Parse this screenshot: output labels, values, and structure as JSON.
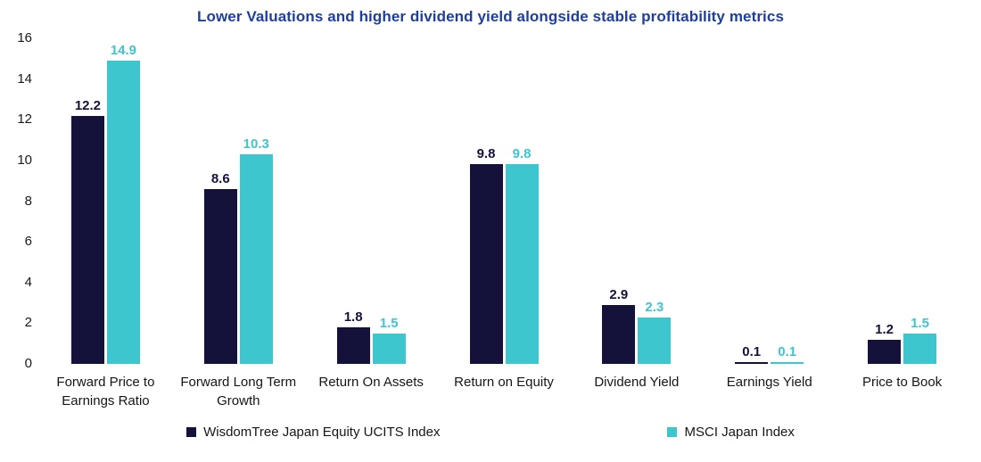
{
  "chart_data": {
    "type": "bar",
    "title": "Lower Valuations and higher dividend yield alongside stable profitability metrics",
    "title_color": "#1e3f9e",
    "categories": [
      "Forward Price to Earnings Ratio",
      "Forward Long Term Growth",
      "Return On Assets",
      "Return on Equity",
      "Dividend Yield",
      "Earnings Yield",
      "Price to Book"
    ],
    "series": [
      {
        "name": "WisdomTree Japan Equity UCITS Index",
        "color": "#14123a",
        "values": [
          12.2,
          8.6,
          1.8,
          9.8,
          2.9,
          0.1,
          1.2
        ]
      },
      {
        "name": "MSCI Japan Index",
        "color": "#3ec6ce",
        "values": [
          14.9,
          10.3,
          1.5,
          9.8,
          2.3,
          0.1,
          1.5
        ]
      }
    ],
    "xlabel": "",
    "ylabel": "",
    "ylim": [
      0,
      16
    ],
    "ytick_step": 2,
    "grid": false,
    "legend_position": "bottom"
  }
}
